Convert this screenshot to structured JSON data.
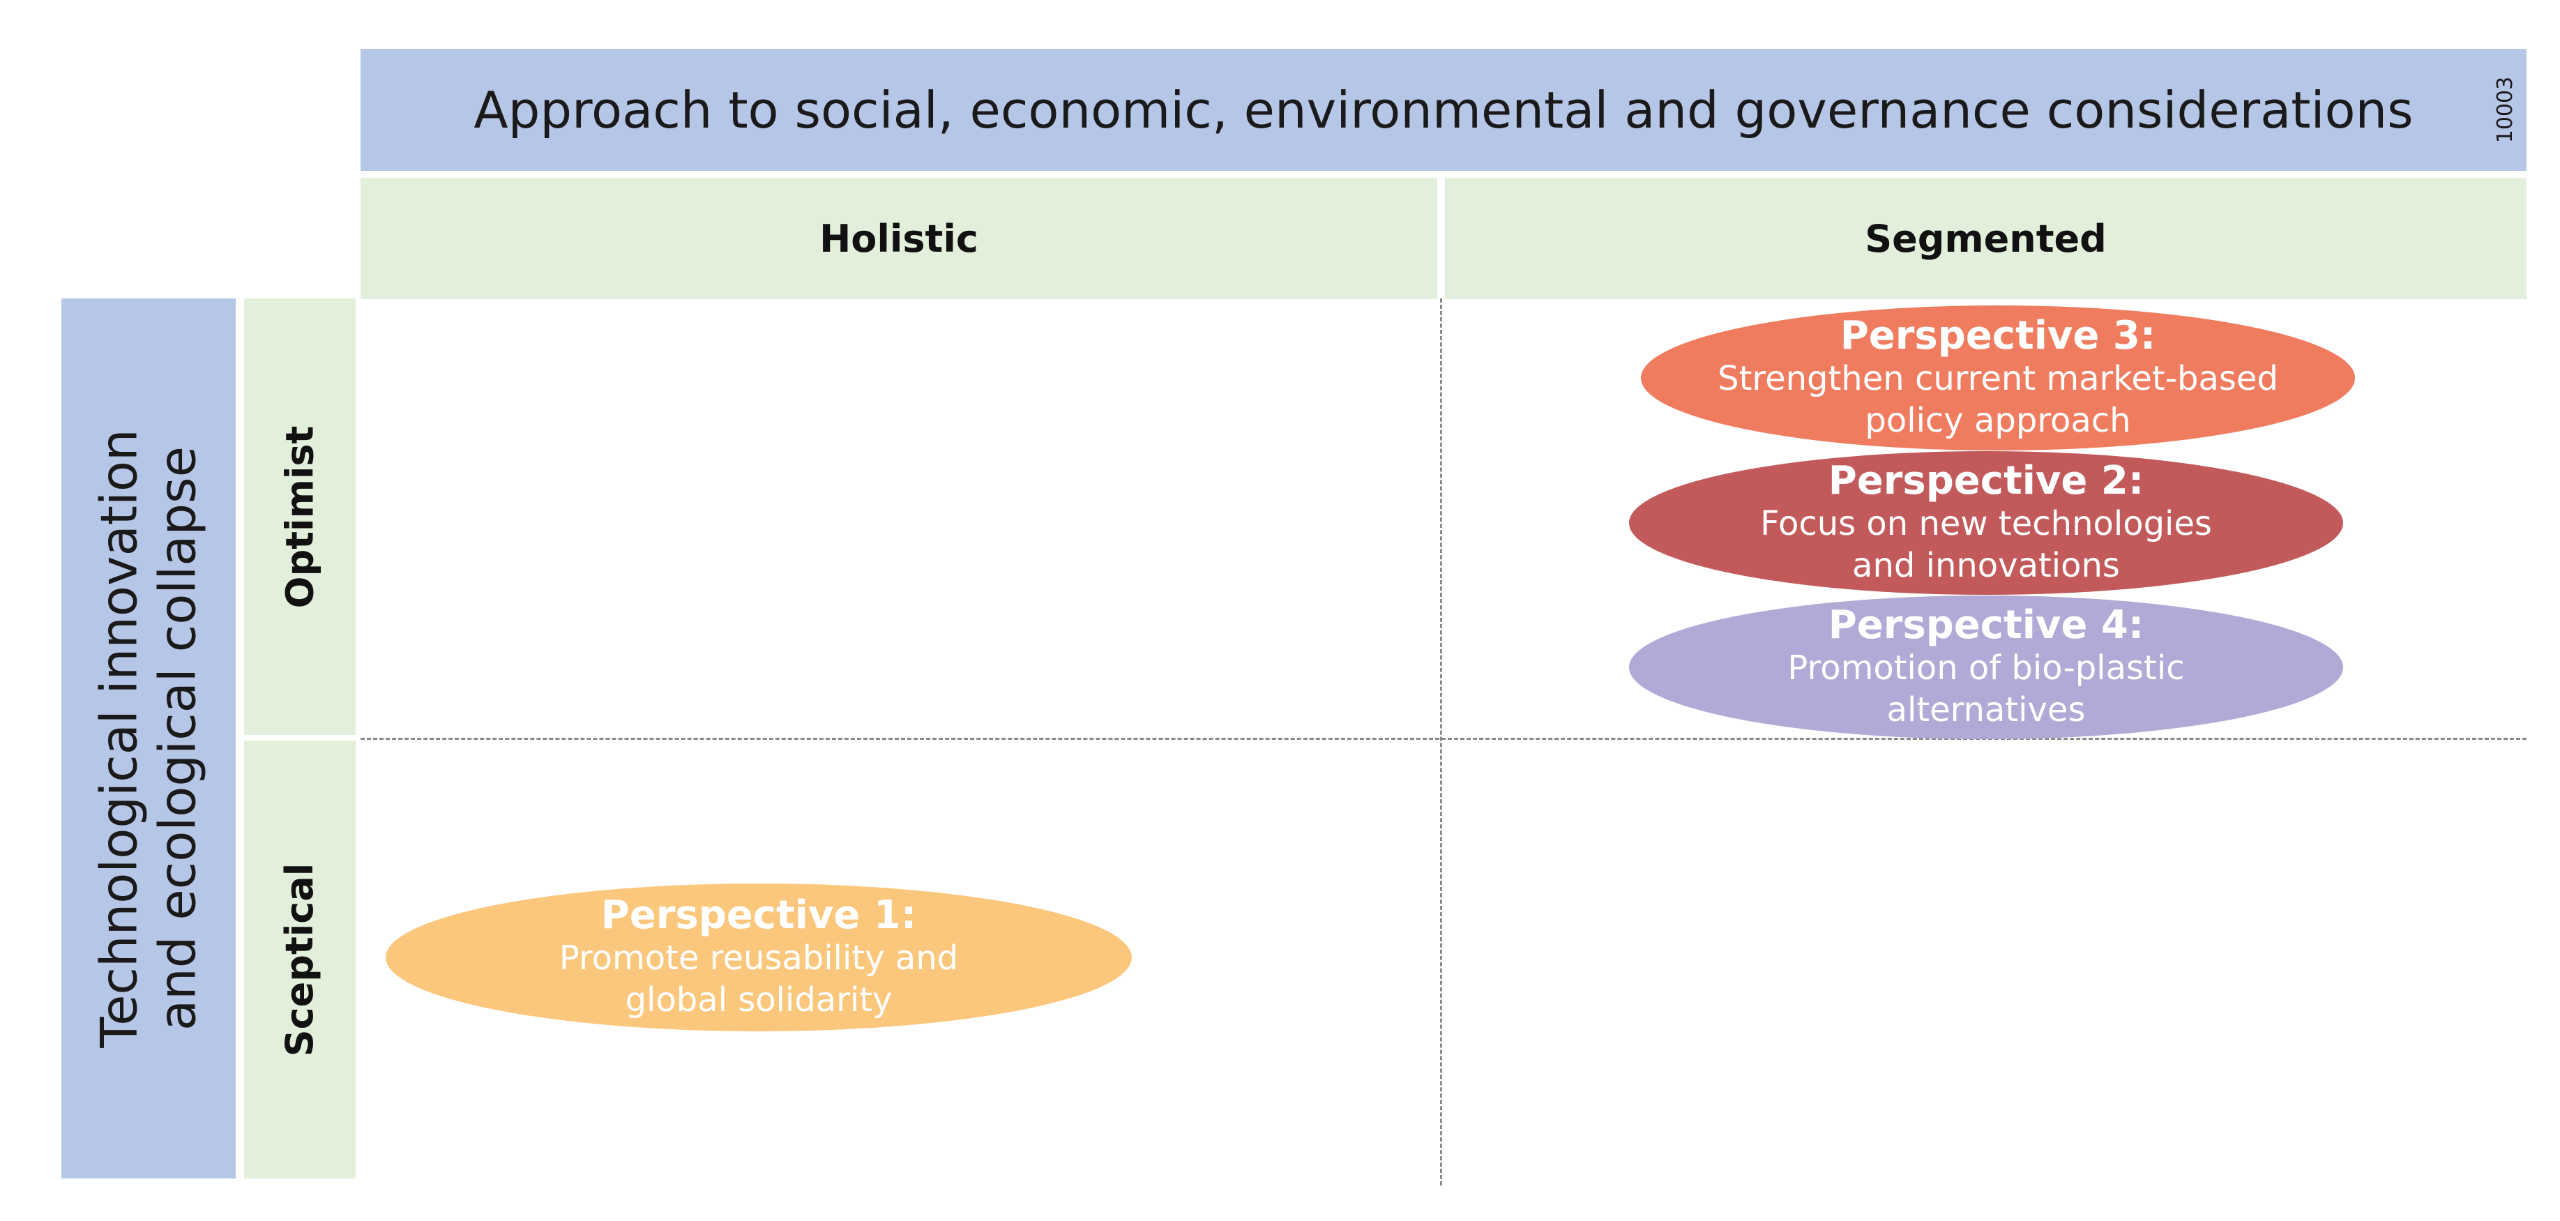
{
  "header": {
    "title": "Approach to social, economic, environmental and governance considerations",
    "figure_id": "10003"
  },
  "columns": [
    {
      "label": "Holistic"
    },
    {
      "label": "Segmented"
    }
  ],
  "axis_left": {
    "line1": "Technological innovation",
    "line2": "and ecological collapse"
  },
  "rows": [
    {
      "label": "Optimist"
    },
    {
      "label": "Sceptical"
    }
  ],
  "perspectives": {
    "p1": {
      "title": "Perspective 1:",
      "line1": "Promote reusability and",
      "line2": "global solidarity",
      "color": "#fbc77d"
    },
    "p2": {
      "title": "Perspective 2:",
      "line1": "Focus on new technologies",
      "line2": "and innovations",
      "color": "#c25a5c"
    },
    "p3": {
      "title": "Perspective 3:",
      "line1": "Strengthen current market-based",
      "line2": "policy approach",
      "color": "#f07c60"
    },
    "p4": {
      "title": "Perspective 4:",
      "line1": "Promotion of bio-plastic",
      "line2": "alternatives",
      "color": "#b1a9d6"
    }
  },
  "colors": {
    "header_blue": "#b6c6e6",
    "header_green": "#e2efda",
    "divider": "#8a8a8a"
  }
}
